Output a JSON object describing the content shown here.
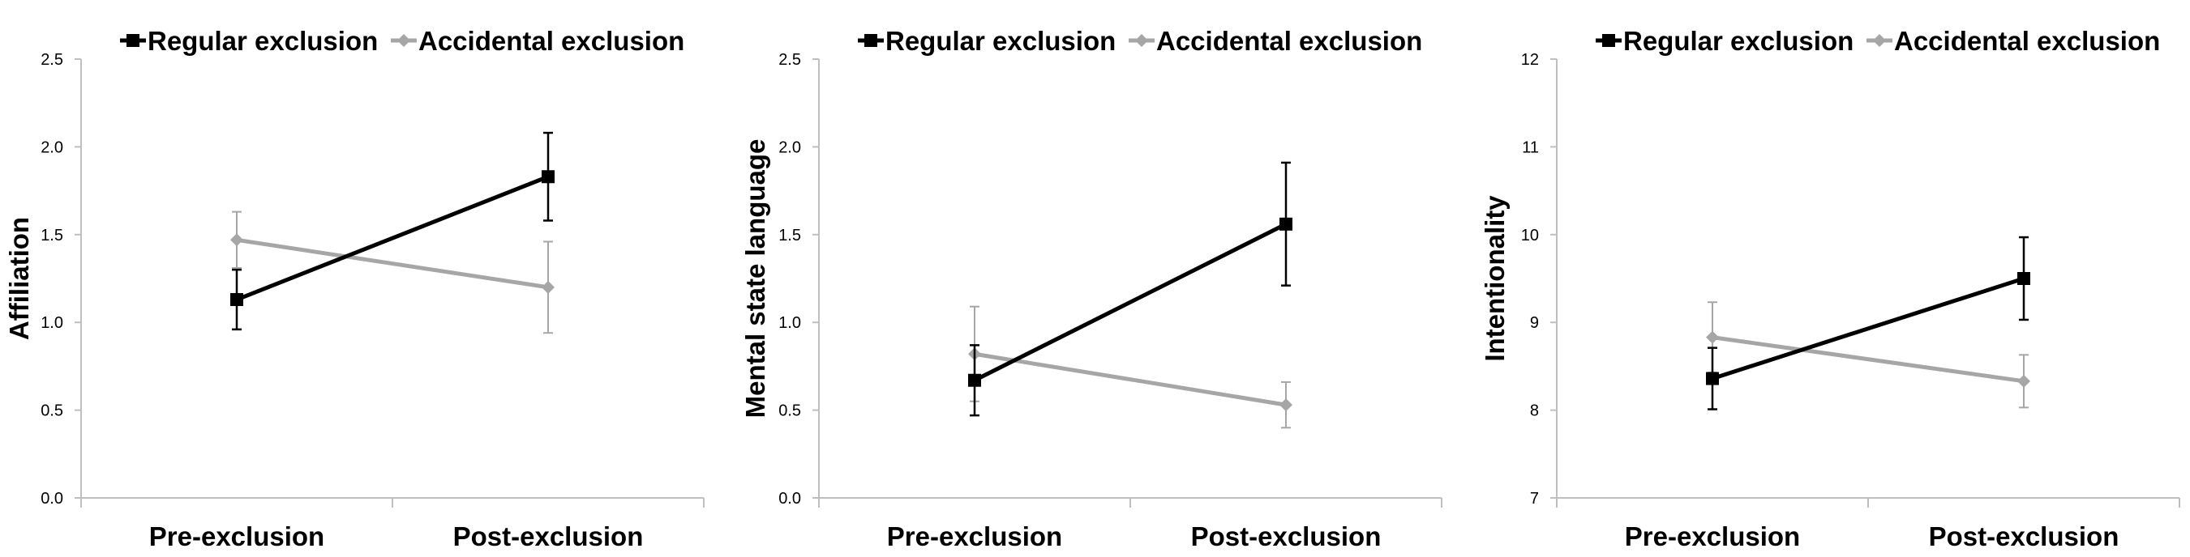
{
  "colors": {
    "regular": "#000000",
    "accidental": "#a6a6a6",
    "axis": "#bfbfbf",
    "text": "#000000"
  },
  "chart_data": [
    {
      "type": "line",
      "ylabel": "Affiliation",
      "categories": [
        "Pre-exclusion",
        "Post-exclusion"
      ],
      "ylim": [
        0,
        2.5
      ],
      "yticks": [
        "0.0",
        "0.5",
        "1.0",
        "1.5",
        "2.0",
        "2.5"
      ],
      "legend_position": "top",
      "grid": false,
      "series": [
        {
          "name": "Regular exclusion",
          "marker": "square",
          "color": "#000000",
          "values": [
            1.13,
            1.83
          ],
          "errors": [
            0.17,
            0.25
          ]
        },
        {
          "name": "Accidental exclusion",
          "marker": "diamond",
          "color": "#a6a6a6",
          "values": [
            1.47,
            1.2
          ],
          "errors": [
            0.16,
            0.26
          ]
        }
      ]
    },
    {
      "type": "line",
      "ylabel": "Mental state language",
      "categories": [
        "Pre-exclusion",
        "Post-exclusion"
      ],
      "ylim": [
        0,
        2.5
      ],
      "yticks": [
        "0.0",
        "0.5",
        "1.0",
        "1.5",
        "2.0",
        "2.5"
      ],
      "legend_position": "top",
      "grid": false,
      "series": [
        {
          "name": "Regular exclusion",
          "marker": "square",
          "color": "#000000",
          "values": [
            0.67,
            1.56
          ],
          "errors": [
            0.2,
            0.35
          ]
        },
        {
          "name": "Accidental exclusion",
          "marker": "diamond",
          "color": "#a6a6a6",
          "values": [
            0.82,
            0.53
          ],
          "errors": [
            0.27,
            0.13
          ]
        }
      ]
    },
    {
      "type": "line",
      "ylabel": "Intentionality",
      "categories": [
        "Pre-exclusion",
        "Post-exclusion"
      ],
      "ylim": [
        7,
        12
      ],
      "yticks": [
        "7",
        "8",
        "9",
        "10",
        "11",
        "12"
      ],
      "legend_position": "top",
      "grid": false,
      "series": [
        {
          "name": "Regular exclusion",
          "marker": "square",
          "color": "#000000",
          "values": [
            8.36,
            9.5
          ],
          "errors": [
            0.35,
            0.47
          ]
        },
        {
          "name": "Accidental exclusion",
          "marker": "diamond",
          "color": "#a6a6a6",
          "values": [
            8.83,
            8.33
          ],
          "errors": [
            0.4,
            0.3
          ]
        }
      ]
    }
  ]
}
